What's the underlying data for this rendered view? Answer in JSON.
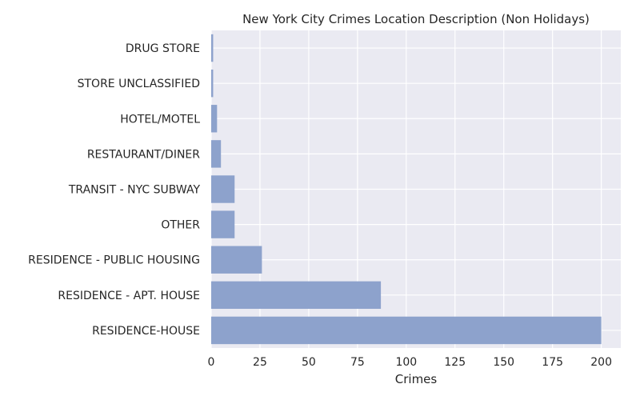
{
  "chart_data": {
    "type": "bar",
    "orientation": "horizontal",
    "title": "New York City Crimes Location Description (Non Holidays)",
    "xlabel": "Crimes",
    "ylabel": "",
    "categories": [
      "RESIDENCE-HOUSE",
      "RESIDENCE - APT. HOUSE",
      "RESIDENCE - PUBLIC HOUSING",
      "OTHER",
      "TRANSIT - NYC SUBWAY",
      "RESTAURANT/DINER",
      "HOTEL/MOTEL",
      "STORE UNCLASSIFIED",
      "DRUG STORE"
    ],
    "values": [
      200,
      87,
      26,
      12,
      12,
      5,
      3,
      1,
      1
    ],
    "xlim": [
      0,
      210
    ],
    "xticks": [
      0,
      25,
      50,
      75,
      100,
      125,
      150,
      175,
      200
    ],
    "grid": true,
    "colors": {
      "bar": "#8da2cc",
      "background": "#eaeaf2",
      "grid": "#ffffff",
      "text": "#262626"
    }
  }
}
